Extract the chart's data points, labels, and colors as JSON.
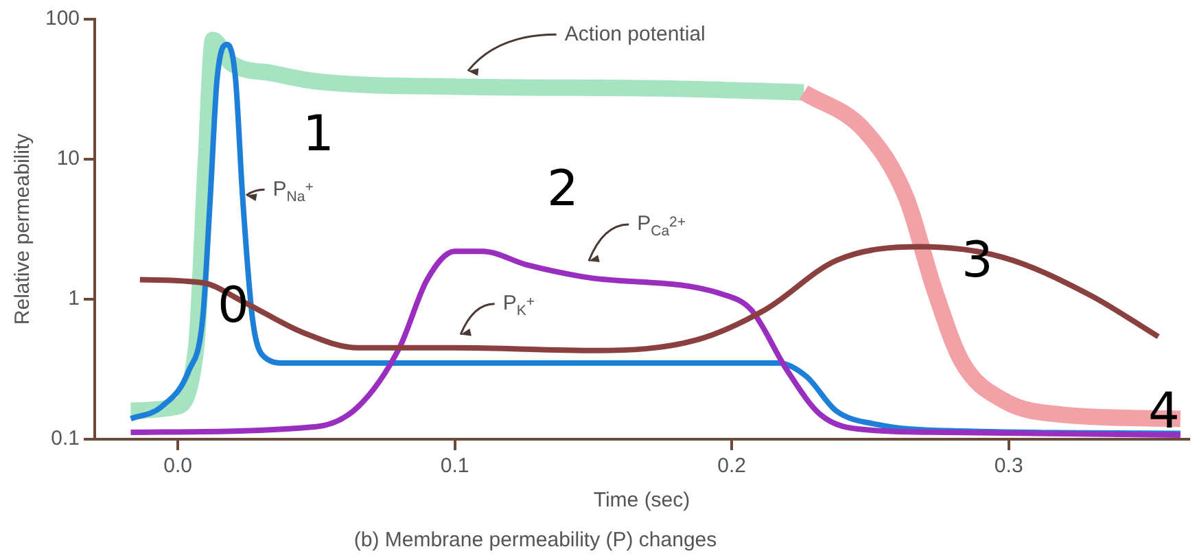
{
  "chart_data": {
    "type": "line",
    "xlabel": "Time (sec)",
    "ylabel": "Relative permeability",
    "log": "y",
    "grid": false,
    "legend": false,
    "marker": "none",
    "line_style": "solid",
    "xlim": [
      -0.03,
      0.365
    ],
    "xticks": [
      {
        "value": 0,
        "label": "0.0"
      },
      0.1,
      0.2,
      0.3
    ],
    "ylim": [
      0.1,
      100
    ],
    "yticks": [
      0.1,
      1,
      10,
      100
    ],
    "series": [
      {
        "name": "Action potential",
        "color": "#a6e3c0",
        "x": [
          -0.017,
          -0.001,
          0.0066,
          0.01,
          0.0127,
          0.019,
          0.0345,
          0.05,
          0.1,
          0.177,
          0.226
        ],
        "values": [
          0.16,
          0.17,
          0.45,
          8.7,
          71,
          49,
          41,
          36,
          33,
          32,
          30
        ]
      },
      {
        "color": "#f2a2a6",
        "x": [
          0.226,
          0.248,
          0.263,
          0.273,
          0.283,
          0.298,
          0.319,
          0.362
        ],
        "values": [
          30,
          16,
          5.3,
          1.2,
          0.36,
          0.19,
          0.15,
          0.14
        ]
      },
      {
        "name": "P$_{Na}$$^{+}$",
        "color": "#1e7fd8",
        "x": [
          -0.017,
          -0.006,
          0.004,
          0.009,
          0.0117,
          0.0142,
          0.0178,
          0.0208,
          0.0234,
          0.0269,
          0.0305,
          0.0386,
          0.217,
          0.227,
          0.2376,
          0.253,
          0.278,
          0.362
        ],
        "values": [
          0.14,
          0.17,
          0.31,
          0.74,
          5.3,
          38,
          66,
          38,
          5.3,
          0.74,
          0.4,
          0.35,
          0.35,
          0.28,
          0.16,
          0.127,
          0.115,
          0.11
        ]
      },
      {
        "name": "P$_{Ca}$$^{2+}$",
        "color": "#9a2fbf",
        "x": [
          -0.017,
          0.05,
          0.065,
          0.08,
          0.09,
          0.1,
          0.11,
          0.126,
          0.146,
          0.197,
          0.207,
          0.22,
          0.232,
          0.248,
          0.278,
          0.362
        ],
        "values": [
          0.112,
          0.123,
          0.17,
          0.45,
          1.38,
          2.2,
          2.2,
          1.76,
          1.45,
          1.08,
          0.84,
          0.31,
          0.15,
          0.117,
          0.112,
          0.107
        ]
      },
      {
        "name": "P$_{K}$$^{+}$",
        "color": "#8b4040",
        "x": [
          -0.0137,
          0.009,
          0.024,
          0.045,
          0.065,
          0.1,
          0.151,
          0.187,
          0.212,
          0.238,
          0.268,
          0.298,
          0.329,
          0.354
        ],
        "values": [
          1.38,
          1.31,
          0.95,
          0.58,
          0.45,
          0.45,
          0.43,
          0.51,
          0.84,
          1.9,
          2.37,
          1.99,
          1.08,
          0.54
        ]
      }
    ],
    "annotations": [
      "0",
      "1",
      "2",
      "3",
      "4",
      "(b) Membrane permeability (P) changes"
    ]
  }
}
